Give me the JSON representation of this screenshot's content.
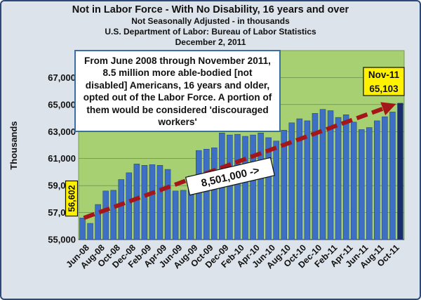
{
  "chart_data": {
    "type": "bar",
    "title": "Not in Labor Force - With No Disability, 16 years and over",
    "subtitle_lines": [
      "Not Seasonally Adjusted - in thousands",
      "U.S. Department of Labor: Bureau of Labor Statistics",
      "December 2, 2011"
    ],
    "ylabel": "Thousands",
    "xlabel": "",
    "ylim": [
      55000,
      69000
    ],
    "y_ticks": [
      "55,000",
      "57,000",
      "59,000",
      "61,000",
      "63,000",
      "65,000",
      "67,000"
    ],
    "grid": "horizontal",
    "categories": [
      "Jun-08",
      "Jul-08",
      "Aug-08",
      "Sep-08",
      "Oct-08",
      "Nov-08",
      "Dec-08",
      "Jan-09",
      "Feb-09",
      "Mar-09",
      "Apr-09",
      "May-09",
      "Jun-09",
      "Jul-09",
      "Aug-09",
      "Sep-09",
      "Oct-09",
      "Nov-09",
      "Dec-09",
      "Jan-10",
      "Feb-10",
      "Mar-10",
      "Apr-10",
      "May-10",
      "Jun-10",
      "Jul-10",
      "Aug-10",
      "Sep-10",
      "Oct-10",
      "Nov-10",
      "Dec-10",
      "Jan-11",
      "Feb-11",
      "Mar-11",
      "Apr-11",
      "May-11",
      "Jun-11",
      "Jul-11",
      "Aug-11",
      "Sep-11",
      "Oct-11",
      "Nov-11"
    ],
    "x_tick_labels": [
      "Jun-08",
      "Aug-08",
      "Oct-08",
      "Dec-08",
      "Feb-09",
      "Apr-09",
      "Jun-09",
      "Aug-09",
      "Oct-09",
      "Dec-09",
      "Feb-10",
      "Apr-10",
      "Jun-10",
      "Aug-10",
      "Oct-10",
      "Dec-10",
      "Feb-11",
      "Apr-11",
      "Jun-11",
      "Aug-11",
      "Oct-11"
    ],
    "values": [
      56602,
      56200,
      57600,
      58600,
      58650,
      59450,
      59950,
      60600,
      60500,
      60550,
      60500,
      60200,
      58600,
      58650,
      59700,
      61600,
      61700,
      61800,
      62900,
      62750,
      62800,
      62650,
      62750,
      62900,
      62550,
      62300,
      63100,
      63650,
      63950,
      63800,
      64350,
      64650,
      64550,
      64050,
      64250,
      63700,
      63150,
      63300,
      63800,
      64100,
      64450,
      65103
    ],
    "highlight_colors": {
      "bar": "#3d6fc4",
      "bar_edge": "#1f3f80",
      "last_bar": "#1b2d6b",
      "plot_bg": "#a6d071",
      "arrow": "#a5161a",
      "label_bg": "#fff200"
    },
    "annotations": {
      "start_label": "56,602",
      "end_label_line1": "Nov-11",
      "end_label_line2": "65,103",
      "arrow_label": "8,501,000 ->",
      "note": "From June 2008 through November 2011, 8.5 million more able-bodied [not disabled] Americans, 16 years and older, opted out of the Labor Force.  A portion of them would be considered 'discouraged workers'"
    }
  }
}
